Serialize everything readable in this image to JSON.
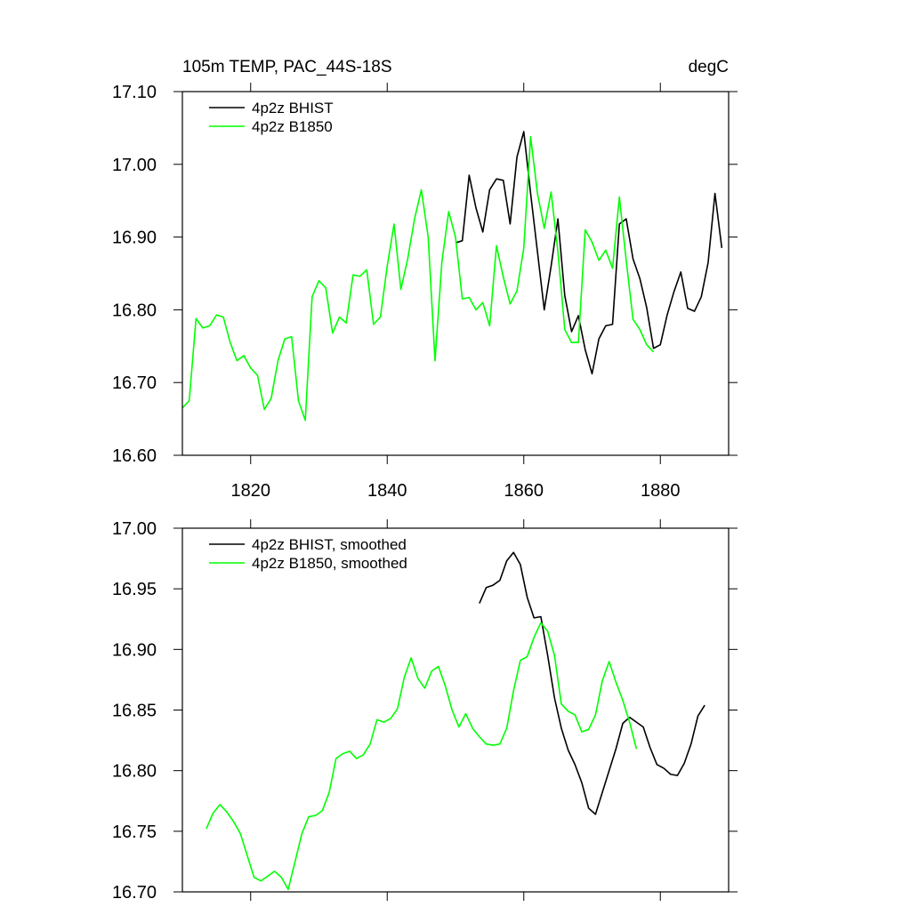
{
  "chart_data": [
    {
      "type": "line",
      "title": "105m TEMP, PAC_44S-18S",
      "units": "degC",
      "legend": "upper left",
      "xlim": [
        1810,
        1890
      ],
      "xticks": [
        1820,
        1840,
        1860,
        1880
      ],
      "ylim": [
        16.6,
        17.1
      ],
      "yticks": [
        {
          "value": 16.6,
          "label": "16.60"
        },
        {
          "value": 16.7,
          "label": "16.70"
        },
        {
          "value": 16.8,
          "label": "16.80"
        },
        {
          "value": 16.9,
          "label": "16.90"
        },
        {
          "value": 17.0,
          "label": "17.00"
        },
        {
          "value": 17.1,
          "label": "17.10"
        }
      ],
      "series": [
        {
          "name": "4p2z BHIST",
          "color": "#000000",
          "x": [
            1850,
            1851,
            1852,
            1853,
            1854,
            1855,
            1856,
            1857,
            1858,
            1859,
            1860,
            1861,
            1862,
            1863,
            1864,
            1865,
            1866,
            1867,
            1868,
            1869,
            1870,
            1871,
            1872,
            1873,
            1874,
            1875,
            1876,
            1877,
            1878,
            1879,
            1880,
            1881,
            1882,
            1883,
            1884,
            1885,
            1886,
            1887,
            1888,
            1889
          ],
          "values": [
            16.892,
            16.895,
            16.985,
            16.94,
            16.907,
            16.965,
            16.98,
            16.978,
            16.918,
            17.01,
            17.045,
            16.96,
            16.88,
            16.8,
            16.86,
            16.925,
            16.82,
            16.77,
            16.792,
            16.745,
            16.712,
            16.76,
            16.778,
            16.78,
            16.918,
            16.925,
            16.87,
            16.843,
            16.803,
            16.747,
            16.752,
            16.793,
            16.825,
            16.852,
            16.802,
            16.798,
            16.818,
            16.865,
            16.96,
            16.885
          ]
        },
        {
          "name": "4p2z B1850",
          "color": "#00ff00",
          "x": [
            1810,
            1811,
            1812,
            1813,
            1814,
            1815,
            1816,
            1817,
            1818,
            1819,
            1820,
            1821,
            1822,
            1823,
            1824,
            1825,
            1826,
            1827,
            1828,
            1829,
            1830,
            1831,
            1832,
            1833,
            1834,
            1835,
            1836,
            1837,
            1838,
            1839,
            1840,
            1841,
            1842,
            1843,
            1844,
            1845,
            1846,
            1847,
            1848,
            1849,
            1850,
            1851,
            1852,
            1853,
            1854,
            1855,
            1856,
            1857,
            1858,
            1859,
            1860,
            1861,
            1862,
            1863,
            1864,
            1865,
            1866,
            1867,
            1868,
            1869,
            1870,
            1871,
            1872,
            1873,
            1874,
            1875,
            1876,
            1877,
            1878,
            1879
          ],
          "values": [
            16.665,
            16.675,
            16.788,
            16.775,
            16.778,
            16.793,
            16.79,
            16.755,
            16.73,
            16.737,
            16.72,
            16.71,
            16.663,
            16.678,
            16.73,
            16.76,
            16.763,
            16.675,
            16.648,
            16.818,
            16.84,
            16.83,
            16.768,
            16.79,
            16.782,
            16.848,
            16.846,
            16.855,
            16.78,
            16.79,
            16.86,
            16.918,
            16.828,
            16.87,
            16.925,
            16.965,
            16.9,
            16.73,
            16.865,
            16.935,
            16.9,
            16.815,
            16.817,
            16.8,
            16.81,
            16.778,
            16.888,
            16.845,
            16.808,
            16.826,
            16.885,
            17.038,
            16.96,
            16.912,
            16.962,
            16.88,
            16.773,
            16.755,
            16.755,
            16.91,
            16.893,
            16.868,
            16.882,
            16.857,
            16.955,
            16.868,
            16.787,
            16.773,
            16.752,
            16.742
          ]
        }
      ]
    },
    {
      "type": "line",
      "legend": "upper left",
      "xlim": [
        1810,
        1890
      ],
      "xticks": [
        1820,
        1840,
        1860,
        1880
      ],
      "ylim": [
        16.7,
        17.0
      ],
      "yticks": [
        {
          "value": 16.7,
          "label": "16.70"
        },
        16.75,
        {
          "value": 16.8,
          "label": "16.80"
        },
        16.85,
        {
          "value": 16.9,
          "label": "16.90"
        },
        16.95,
        {
          "value": 17.0,
          "label": "17.00"
        }
      ],
      "series": [
        {
          "name": "4p2z BHIST, smoothed",
          "color": "#000000",
          "x": [
            1853.5,
            1854.5,
            1855.5,
            1856.5,
            1857.5,
            1858.5,
            1859.5,
            1860.5,
            1861.5,
            1862.5,
            1863.5,
            1864.5,
            1865.5,
            1866.5,
            1867.5,
            1868.5,
            1869.5,
            1870.5,
            1871.5,
            1872.5,
            1873.5,
            1874.5,
            1875.5,
            1876.5,
            1877.5,
            1878.5,
            1879.5,
            1880.5,
            1881.5,
            1882.5,
            1883.5,
            1884.5,
            1885.5,
            1886.5
          ],
          "values": [
            16.938,
            16.951,
            16.953,
            16.957,
            16.973,
            16.98,
            16.97,
            16.943,
            16.926,
            16.927,
            16.895,
            16.86,
            16.835,
            16.817,
            16.805,
            16.79,
            16.769,
            16.764,
            16.782,
            16.8,
            16.818,
            16.839,
            16.844,
            16.84,
            16.836,
            16.819,
            16.805,
            16.802,
            16.797,
            16.796,
            16.806,
            16.822,
            16.845,
            16.854
          ]
        },
        {
          "name": "4p2z B1850, smoothed",
          "color": "#00ff00",
          "x": [
            1813.5,
            1814.5,
            1815.5,
            1816.5,
            1817.5,
            1818.5,
            1819.5,
            1820.5,
            1821.5,
            1822.5,
            1823.5,
            1824.5,
            1825.5,
            1826.5,
            1827.5,
            1828.5,
            1829.5,
            1830.5,
            1831.5,
            1832.5,
            1833.5,
            1834.5,
            1835.5,
            1836.5,
            1837.5,
            1838.5,
            1839.5,
            1840.5,
            1841.5,
            1842.5,
            1843.5,
            1844.5,
            1845.5,
            1846.5,
            1847.5,
            1848.5,
            1849.5,
            1850.5,
            1851.5,
            1852.5,
            1853.5,
            1854.5,
            1855.5,
            1856.5,
            1857.5,
            1858.5,
            1859.5,
            1860.5,
            1861.5,
            1862.5,
            1863.5,
            1864.5,
            1865.5,
            1866.5,
            1867.5,
            1868.5,
            1869.5,
            1870.5,
            1871.5,
            1872.5,
            1873.5,
            1874.5,
            1875.5,
            1876.5
          ],
          "values": [
            16.752,
            16.765,
            16.772,
            16.766,
            16.758,
            16.748,
            16.73,
            16.712,
            16.709,
            16.713,
            16.717,
            16.712,
            16.702,
            16.725,
            16.748,
            16.762,
            16.763,
            16.767,
            16.782,
            16.81,
            16.814,
            16.816,
            16.81,
            16.813,
            16.822,
            16.842,
            16.84,
            16.843,
            16.851,
            16.877,
            16.893,
            16.876,
            16.868,
            16.882,
            16.886,
            16.87,
            16.85,
            16.836,
            16.847,
            16.835,
            16.828,
            16.822,
            16.821,
            16.822,
            16.835,
            16.866,
            16.891,
            16.894,
            16.91,
            16.922,
            16.915,
            16.895,
            16.855,
            16.849,
            16.846,
            16.832,
            16.834,
            16.846,
            16.874,
            16.89,
            16.873,
            16.858,
            16.84,
            16.818
          ]
        }
      ]
    }
  ]
}
